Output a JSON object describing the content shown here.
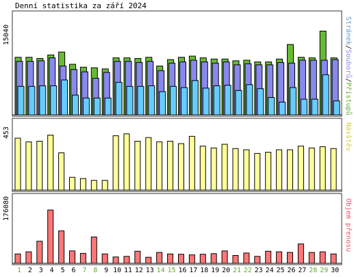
{
  "window": {
    "title": "Denní statistika za září 2024"
  },
  "legend": {
    "top": [
      {
        "text": "Stránek",
        "color": "#6699cc"
      },
      {
        "text": "/",
        "color": "#000000"
      },
      {
        "text": "Souborů",
        "color": "#8888ee"
      },
      {
        "text": "/",
        "color": "#000000"
      },
      {
        "text": "Přístupů",
        "color": "#66aa33"
      }
    ],
    "middle": {
      "text": "Návštěv",
      "color": "#cccc44"
    },
    "bottom": {
      "text": "Objem přenosu",
      "color": "#ee5566"
    }
  },
  "chart_data": [
    {
      "type": "bar",
      "title": "Denní statistika za září 2024",
      "categories": [
        "1",
        "2",
        "3",
        "4",
        "5",
        "6",
        "7",
        "8",
        "9",
        "10",
        "11",
        "12",
        "13",
        "14",
        "15",
        "16",
        "17",
        "18",
        "19",
        "20",
        "21",
        "22",
        "23",
        "24",
        "25",
        "26",
        "27",
        "28",
        "29",
        "30"
      ],
      "weekend_days": [
        "1",
        "7",
        "8",
        "14",
        "15",
        "21",
        "22",
        "28",
        "29"
      ],
      "ytick": "15040",
      "ylim": [
        0,
        15040
      ],
      "series": [
        {
          "name": "Přístupů",
          "color": "#66bb33",
          "values": [
            9900,
            9900,
            9700,
            10300,
            10800,
            8700,
            8200,
            8100,
            7900,
            9800,
            9800,
            9700,
            9900,
            8400,
            9500,
            9900,
            10100,
            9800,
            9600,
            9600,
            9300,
            9400,
            9100,
            9100,
            9600,
            12100,
            9900,
            9800,
            14400,
            9800
          ]
        },
        {
          "name": "Souborů",
          "color": "#8888ee",
          "values": [
            9200,
            9200,
            9300,
            9800,
            8400,
            7800,
            7400,
            6300,
            7300,
            9200,
            9200,
            9000,
            9200,
            7600,
            8900,
            9100,
            9400,
            9100,
            8900,
            9100,
            8600,
            8800,
            8600,
            8600,
            9000,
            8900,
            9400,
            9400,
            9400,
            9500
          ]
        },
        {
          "name": "Stránek",
          "color": "#66ccff",
          "values": [
            4900,
            4900,
            5000,
            5000,
            6000,
            3400,
            2900,
            2900,
            2900,
            5600,
            4900,
            4900,
            5000,
            4000,
            4900,
            4700,
            5900,
            4600,
            5000,
            5100,
            4200,
            5200,
            4500,
            3000,
            2200,
            4700,
            2700,
            2700,
            6900,
            2400
          ]
        }
      ]
    },
    {
      "type": "bar",
      "categories": [
        "1",
        "2",
        "3",
        "4",
        "5",
        "6",
        "7",
        "8",
        "9",
        "10",
        "11",
        "12",
        "13",
        "14",
        "15",
        "16",
        "17",
        "18",
        "19",
        "20",
        "21",
        "22",
        "23",
        "24",
        "25",
        "26",
        "27",
        "28",
        "29",
        "30"
      ],
      "ytick": "453",
      "ylim": [
        0,
        453
      ],
      "series": [
        {
          "name": "Návštěv",
          "color": "#ffff99",
          "values": [
            425,
            395,
            400,
            450,
            305,
            105,
            95,
            80,
            80,
            445,
            460,
            400,
            430,
            395,
            400,
            380,
            440,
            360,
            345,
            375,
            340,
            330,
            300,
            310,
            330,
            330,
            360,
            345,
            355,
            340
          ]
        }
      ]
    },
    {
      "type": "bar",
      "categories": [
        "1",
        "2",
        "3",
        "4",
        "5",
        "6",
        "7",
        "8",
        "9",
        "10",
        "11",
        "12",
        "13",
        "14",
        "15",
        "16",
        "17",
        "18",
        "19",
        "20",
        "21",
        "22",
        "23",
        "24",
        "25",
        "26",
        "27",
        "28",
        "29",
        "30"
      ],
      "ytick": "176080",
      "ylim": [
        0,
        176080
      ],
      "series": [
        {
          "name": "Objem přenosu",
          "color": "#ff7777",
          "values": [
            31000,
            38000,
            73000,
            176000,
            107000,
            41000,
            33000,
            87000,
            31000,
            21000,
            23000,
            40000,
            20000,
            36000,
            31000,
            30000,
            28000,
            30000,
            32000,
            41000,
            26000,
            34000,
            23000,
            40000,
            38000,
            36000,
            64000,
            36000,
            38000,
            31000
          ]
        }
      ]
    }
  ]
}
